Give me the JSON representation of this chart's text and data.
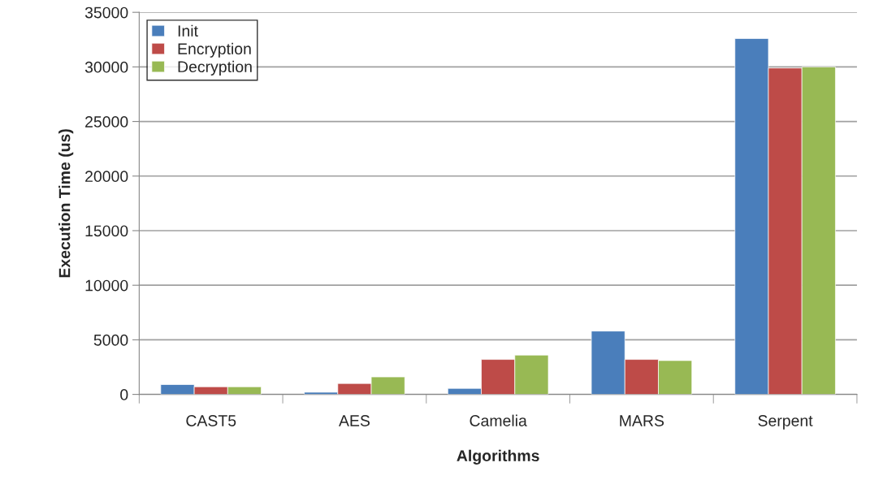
{
  "chart_data": {
    "type": "bar",
    "xlabel": "Algorithms",
    "ylabel": "Execution Time (us)",
    "categories": [
      "CAST5",
      "AES",
      "Camelia",
      "MARS",
      "Serpent"
    ],
    "series": [
      {
        "name": "Init",
        "color": "#4a7ebb",
        "values": [
          900,
          200,
          550,
          5800,
          32600
        ]
      },
      {
        "name": "Encryption",
        "color": "#be4b48",
        "values": [
          700,
          1000,
          3200,
          3200,
          29900
        ]
      },
      {
        "name": "Decryption",
        "color": "#98b954",
        "values": [
          700,
          1600,
          3600,
          3100,
          30000
        ]
      }
    ],
    "ylim": [
      0,
      35000
    ],
    "yticks": [
      0,
      5000,
      10000,
      15000,
      20000,
      25000,
      30000,
      35000
    ],
    "grid": "y",
    "legend": "top left"
  }
}
